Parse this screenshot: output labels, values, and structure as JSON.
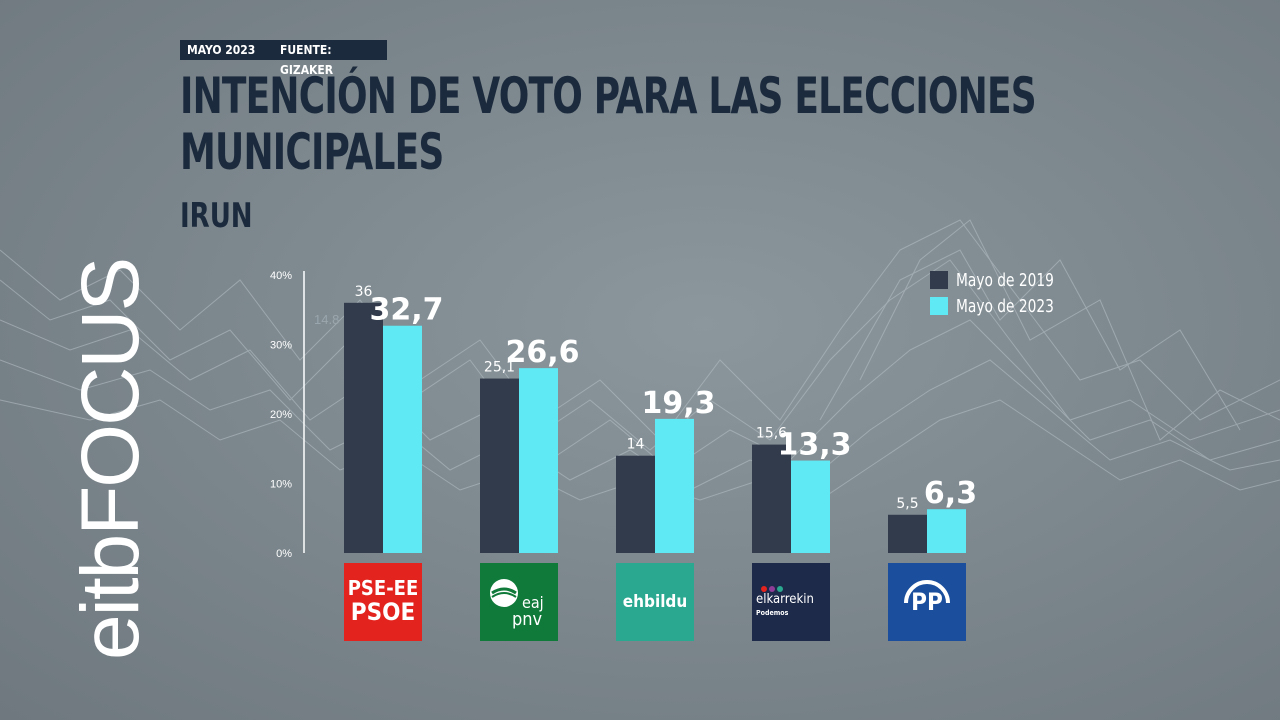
{
  "header": {
    "date": "MAYO 2023",
    "source": "FUENTE: GIZAKER"
  },
  "title_lines": [
    "INTENCIÓN DE VOTO PARA LAS ELECCIONES",
    "MUNICIPALES"
  ],
  "subtitle": "IRUN",
  "brand": {
    "logo_text": "eitbFOCUS"
  },
  "colors": {
    "series_2019": "#323b4c",
    "series_2023": "#5ee9f4",
    "title": "#1c2a3d",
    "axis": "#ffffff"
  },
  "legend": [
    "Mayo de 2019",
    "Mayo de 2023"
  ],
  "background_label": "14.8",
  "chart_data": {
    "type": "bar",
    "title": "INTENCIÓN DE VOTO PARA LAS ELECCIONES MUNICIPALES",
    "subtitle": "IRUN",
    "categories": [
      "PSE-EE PSOE",
      "EAJ PNV",
      "ehbildu",
      "elkarrekin Podemos",
      "PP"
    ],
    "series": [
      {
        "name": "Mayo de 2019",
        "values": [
          36,
          25.1,
          14,
          15.6,
          5.5
        ],
        "labels": [
          "36",
          "25,1",
          "14",
          "15,6",
          "5,5"
        ]
      },
      {
        "name": "Mayo de 2023",
        "values": [
          32.7,
          26.6,
          19.3,
          13.3,
          6.3
        ],
        "labels": [
          "32,7",
          "26,6",
          "19,3",
          "13,3",
          "6,3"
        ]
      }
    ],
    "yticks": [
      "0%",
      "10%",
      "20%",
      "30%",
      "40%"
    ],
    "ylim": [
      0,
      40
    ],
    "grid": false,
    "legend_position": "top-right"
  },
  "parties": [
    {
      "name": "PSE-EE PSOE",
      "line1": "PSE-EE",
      "line2": "PSOE",
      "color": "#e3231d"
    },
    {
      "name": "EAJ PNV",
      "line1": "eaj",
      "line2": "pnv",
      "color": "#0f7a3a"
    },
    {
      "name": "ehbildu",
      "line1": "ehbildu",
      "line2": "",
      "color": "#2aa890"
    },
    {
      "name": "elkarrekin Podemos",
      "line1": "elkarrekin",
      "line2": "Podemos",
      "color": "#1d2a4a"
    },
    {
      "name": "PP",
      "line1": "PP",
      "line2": "",
      "color": "#1b4f9e"
    }
  ]
}
